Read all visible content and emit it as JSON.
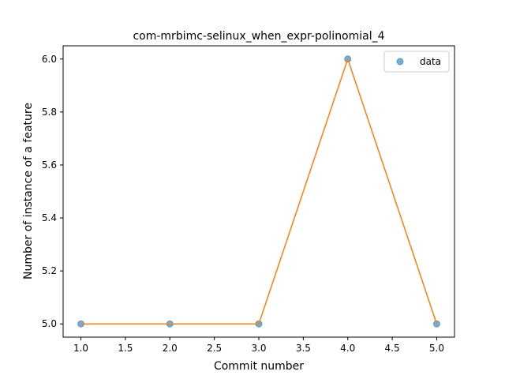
{
  "chart_data": {
    "type": "line",
    "title": "com-mrbimc-selinux_when_expr-polinomial_4",
    "xlabel": "Commit number",
    "ylabel": "Number of instance of a feature",
    "xlim": [
      0.8,
      5.2
    ],
    "ylim": [
      4.95,
      6.05
    ],
    "x_ticks": [
      1.0,
      1.5,
      2.0,
      2.5,
      3.0,
      3.5,
      4.0,
      4.5,
      5.0
    ],
    "x_tick_labels": [
      "1.0",
      "1.5",
      "2.0",
      "2.5",
      "3.0",
      "3.5",
      "4.0",
      "4.5",
      "5.0"
    ],
    "y_ticks": [
      5.0,
      5.2,
      5.4,
      5.6,
      5.8,
      6.0
    ],
    "y_tick_labels": [
      "5.0",
      "5.2",
      "5.4",
      "5.6",
      "5.8",
      "6.0"
    ],
    "grid": false,
    "legend_position": "top-right",
    "series": [
      {
        "name": "data",
        "style": "markers",
        "color": "#1f77b4",
        "x": [
          1,
          2,
          3,
          4,
          5
        ],
        "y": [
          5.0,
          5.0,
          5.0,
          6.0,
          5.0
        ]
      },
      {
        "style": "line",
        "color": "#ff7f0e",
        "x": [
          1,
          2,
          3,
          4,
          5
        ],
        "y": [
          5.0,
          5.0,
          5.0,
          6.0,
          5.0
        ]
      }
    ]
  }
}
